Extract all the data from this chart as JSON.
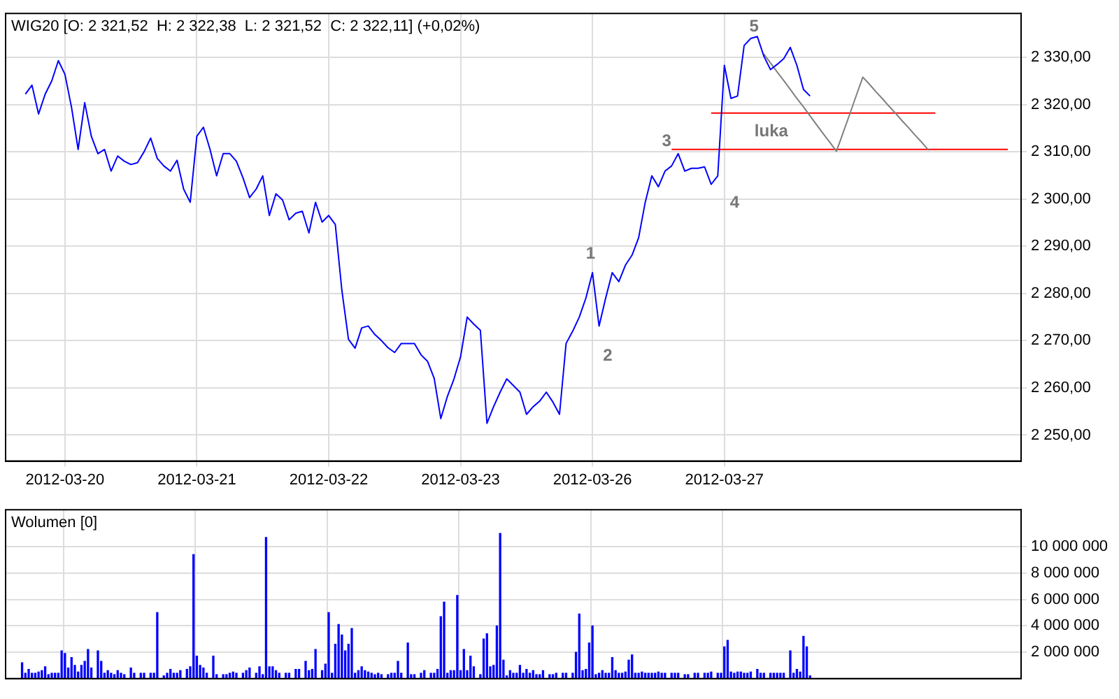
{
  "chart_data": [
    {
      "type": "line",
      "title": "WIG20 [O: 2 321,52  H: 2 322,38  L: 2 321,52  C: 2 322,11] (+0,02%)",
      "categories": [
        null,
        null,
        null,
        null,
        null,
        null,
        null,
        null,
        null,
        "2012-03-20",
        null,
        null,
        null,
        null,
        null,
        null,
        null,
        null,
        null,
        null,
        null,
        null,
        null,
        null,
        null,
        null,
        null,
        null,
        null,
        "2012-03-21",
        null,
        null,
        null,
        null,
        null,
        null,
        null,
        null,
        null,
        null,
        null,
        null,
        null,
        null,
        null,
        null,
        null,
        null,
        null,
        "2012-03-22",
        null,
        null,
        null,
        null,
        null,
        null,
        null,
        null,
        null,
        null,
        null,
        null,
        null,
        null,
        null,
        null,
        null,
        null,
        null,
        "2012-03-23",
        null,
        null,
        null,
        null,
        null,
        null,
        null,
        null,
        null,
        null,
        null,
        null,
        null,
        null,
        null,
        null,
        null,
        null,
        null,
        "2012-03-26",
        null,
        null,
        null,
        null,
        null,
        null,
        null,
        null,
        null,
        null,
        null,
        null,
        null,
        null,
        null,
        null,
        null,
        null,
        null,
        "2012-03-27",
        null,
        null,
        null,
        null,
        null,
        null,
        null,
        null,
        null,
        null,
        null,
        null,
        null,
        null,
        null,
        null,
        null,
        null,
        null,
        null,
        null,
        null,
        null,
        null,
        null,
        null,
        null,
        null,
        null,
        null,
        null,
        null,
        null,
        null,
        null,
        null,
        null,
        null,
        null,
        null,
        null,
        null,
        null,
        null,
        null
      ],
      "ylim": [
        2244.5,
        2339.3
      ],
      "yticks": [
        {
          "value": 2250,
          "label": "2 250,00"
        },
        {
          "value": 2260,
          "label": "2 260,00"
        },
        {
          "value": 2270,
          "label": "2 270,00"
        },
        {
          "value": 2280,
          "label": "2 280,00"
        },
        {
          "value": 2290,
          "label": "2 290,00"
        },
        {
          "value": 2300,
          "label": "2 300,00"
        },
        {
          "value": 2310,
          "label": "2 310,00"
        },
        {
          "value": 2320,
          "label": "2 320,00"
        },
        {
          "value": 2330,
          "label": "2 330,00"
        }
      ],
      "grid": true,
      "legend": false,
      "marker": "none",
      "line_style": "solid",
      "series": [
        {
          "color": "#0000ff",
          "values": [
            null,
            null,
            null,
            2322.2,
            2324.1,
            2318.0,
            2322.2,
            2325.0,
            2329.3,
            2326.4,
            2319.4,
            2310.5,
            2320.4,
            2313.3,
            2309.6,
            2310.5,
            2305.9,
            2309.1,
            2308.0,
            2307.3,
            2307.7,
            2310.0,
            2312.9,
            2308.6,
            2307.0,
            2305.9,
            2308.2,
            2302.1,
            2299.3,
            2313.3,
            2315.2,
            2310.5,
            2304.9,
            2309.6,
            2309.6,
            2308.0,
            2304.5,
            2300.3,
            2302.1,
            2304.9,
            2296.5,
            2301.1,
            2299.8,
            2295.6,
            2297.0,
            2297.4,
            2292.8,
            2299.3,
            2295.1,
            2296.5,
            2294.6,
            2280.6,
            2270.3,
            2268.4,
            2272.7,
            2273.1,
            2271.3,
            2270.0,
            2268.5,
            2267.5,
            2269.4,
            2269.4,
            2269.4,
            2267.0,
            2265.6,
            2262.0,
            2253.5,
            2258.2,
            2261.9,
            2266.6,
            2275.0,
            2273.5,
            2272.2,
            2252.5,
            2256.0,
            2259.1,
            2261.9,
            2260.5,
            2259.1,
            2254.4,
            2256.0,
            2257.2,
            2259.1,
            2257.0,
            2254.4,
            2269.4,
            2272.0,
            2275.0,
            2279.0,
            2284.4,
            2273.1,
            2279.0,
            2284.4,
            2282.5,
            2286.0,
            2288.1,
            2291.8,
            2299.3,
            2304.9,
            2302.6,
            2305.9,
            2307.0,
            2309.6,
            2305.9,
            2306.5,
            2306.5,
            2306.8,
            2303.1,
            2304.9,
            2328.3,
            2321.3,
            2321.8,
            2332.5,
            2334.0,
            2334.4,
            2330.2,
            2327.4,
            2328.5,
            2329.7,
            2332.1,
            2328.3,
            2323.2,
            2321.8,
            null,
            null,
            null,
            null,
            null,
            null,
            null,
            null,
            null,
            null,
            null,
            null,
            null,
            null,
            null,
            null,
            null,
            null,
            null,
            null,
            null,
            null,
            null,
            null,
            null,
            null,
            null,
            null,
            null,
            null,
            null,
            null
          ]
        },
        {
          "color": "#808080",
          "values": [
            null,
            null,
            null,
            null,
            null,
            null,
            null,
            null,
            null,
            null,
            null,
            null,
            null,
            null,
            null,
            null,
            null,
            null,
            null,
            null,
            null,
            null,
            null,
            null,
            null,
            null,
            null,
            null,
            null,
            null,
            null,
            null,
            null,
            null,
            null,
            null,
            null,
            null,
            null,
            null,
            null,
            null,
            null,
            null,
            null,
            null,
            null,
            null,
            null,
            null,
            null,
            null,
            null,
            null,
            null,
            null,
            null,
            null,
            null,
            null,
            null,
            null,
            null,
            null,
            null,
            null,
            null,
            null,
            null,
            null,
            null,
            null,
            null,
            null,
            null,
            null,
            null,
            null,
            null,
            null,
            null,
            null,
            null,
            null,
            null,
            null,
            null,
            null,
            null,
            null,
            null,
            null,
            null,
            null,
            null,
            null,
            null,
            null,
            null,
            null,
            null,
            null,
            null,
            null,
            null,
            null,
            null,
            null,
            null,
            null,
            null,
            null,
            null,
            null,
            null,
            2330.7,
            2328.8,
            2326.9,
            2325.1,
            2323.2,
            2321.3,
            2319.5,
            2317.6,
            2315.7,
            2313.8,
            2312.0,
            2310.1,
            2314.0,
            2317.9,
            2321.9,
            2325.8,
            2324.3,
            2322.7,
            2321.2,
            2319.6,
            2318.1,
            2316.5,
            2315.0,
            2313.4,
            2311.9,
            2310.3,
            null,
            null,
            null,
            null,
            null,
            null,
            null,
            null,
            null,
            null,
            null,
            null,
            null,
            null
          ]
        },
        {
          "color": "#ff0000",
          "values": [
            null,
            null,
            null,
            null,
            null,
            null,
            null,
            null,
            null,
            null,
            null,
            null,
            null,
            null,
            null,
            null,
            null,
            null,
            null,
            null,
            null,
            null,
            null,
            null,
            null,
            null,
            null,
            null,
            null,
            null,
            null,
            null,
            null,
            null,
            null,
            null,
            null,
            null,
            null,
            null,
            null,
            null,
            null,
            null,
            null,
            null,
            null,
            null,
            null,
            null,
            null,
            null,
            null,
            null,
            null,
            null,
            null,
            null,
            null,
            null,
            null,
            null,
            null,
            null,
            null,
            null,
            null,
            null,
            null,
            null,
            null,
            null,
            null,
            null,
            null,
            null,
            null,
            null,
            null,
            null,
            null,
            null,
            null,
            null,
            null,
            null,
            null,
            null,
            null,
            null,
            null,
            null,
            null,
            null,
            null,
            null,
            null,
            null,
            null,
            null,
            null,
            null,
            null,
            null,
            null,
            null,
            null,
            2318.2,
            2318.2,
            2318.2,
            2318.2,
            2318.2,
            2318.2,
            2318.2,
            2318.2,
            2318.2,
            2318.2,
            2318.2,
            2318.2,
            2318.2,
            2318.2,
            2318.2,
            2318.2,
            2318.2,
            2318.2,
            2318.2,
            2318.2,
            2318.2,
            2318.2,
            2318.2,
            2318.2,
            2318.2,
            2318.2,
            2318.2,
            2318.2,
            2318.2,
            2318.2,
            2318.2,
            2318.2,
            2318.2,
            2318.2,
            2318.2,
            null,
            null,
            null,
            null,
            null,
            null,
            null,
            null,
            null,
            null,
            null,
            null,
            null
          ]
        },
        {
          "color": "#ff0000",
          "values": [
            null,
            null,
            null,
            null,
            null,
            null,
            null,
            null,
            null,
            null,
            null,
            null,
            null,
            null,
            null,
            null,
            null,
            null,
            null,
            null,
            null,
            null,
            null,
            null,
            null,
            null,
            null,
            null,
            null,
            null,
            null,
            null,
            null,
            null,
            null,
            null,
            null,
            null,
            null,
            null,
            null,
            null,
            null,
            null,
            null,
            null,
            null,
            null,
            null,
            null,
            null,
            null,
            null,
            null,
            null,
            null,
            null,
            null,
            null,
            null,
            null,
            null,
            null,
            null,
            null,
            null,
            null,
            null,
            null,
            null,
            null,
            null,
            null,
            null,
            null,
            null,
            null,
            null,
            null,
            null,
            null,
            null,
            null,
            null,
            null,
            null,
            null,
            null,
            null,
            null,
            null,
            null,
            null,
            null,
            null,
            null,
            null,
            null,
            null,
            null,
            null,
            2310.5,
            2310.5,
            2310.5,
            2310.5,
            2310.5,
            2310.5,
            2310.5,
            2310.5,
            2310.5,
            2310.5,
            2310.5,
            2310.5,
            2310.5,
            2310.5,
            2310.5,
            2310.5,
            2310.5,
            2310.5,
            2310.5,
            2310.5,
            2310.5,
            2310.5,
            2310.5,
            2310.5,
            2310.5,
            2310.5,
            2310.5,
            2310.5,
            2310.5,
            2310.5,
            2310.5,
            2310.5,
            2310.5,
            2310.5,
            2310.5,
            2310.5,
            2310.5,
            2310.5,
            2310.5,
            2310.5,
            2310.5,
            2310.5,
            2310.5,
            2310.5,
            2310.5,
            2310.5,
            2310.5,
            2310.5,
            2310.5,
            2310.5,
            2310.5,
            2310.5,
            null,
            null
          ]
        }
      ],
      "annotations": [
        "1",
        "2",
        "3",
        "4",
        "5",
        "luka"
      ]
    },
    {
      "type": "bar",
      "title": "Wolumen [0]",
      "color": "#0000ff",
      "categories": [
        null,
        null,
        null,
        null,
        null,
        null,
        null,
        null,
        null,
        null,
        null,
        null,
        null,
        null,
        null,
        null,
        null,
        null,
        "2012-03-20",
        null,
        null,
        null,
        null,
        null,
        null,
        null,
        null,
        null,
        null,
        null,
        null,
        null,
        null,
        null,
        null,
        null,
        null,
        null,
        null,
        null,
        null,
        null,
        null,
        null,
        null,
        null,
        null,
        null,
        null,
        null,
        null,
        null,
        null,
        null,
        null,
        null,
        null,
        null,
        "2012-03-21",
        null,
        null,
        null,
        null,
        null,
        null,
        null,
        null,
        null,
        null,
        null,
        null,
        null,
        null,
        null,
        null,
        null,
        null,
        null,
        null,
        null,
        null,
        null,
        null,
        null,
        null,
        null,
        null,
        null,
        null,
        null,
        null,
        null,
        null,
        null,
        null,
        null,
        null,
        null,
        "2012-03-22",
        null,
        null,
        null,
        null,
        null,
        null,
        null,
        null,
        null,
        null,
        null,
        null,
        null,
        null,
        null,
        null,
        null,
        null,
        null,
        null,
        null,
        null,
        null,
        null,
        null,
        null,
        null,
        null,
        null,
        null,
        null,
        null,
        null,
        null,
        null,
        null,
        null,
        null,
        null,
        "2012-03-23",
        null,
        null,
        null,
        null,
        null,
        null,
        null,
        null,
        null,
        null,
        null,
        null,
        null,
        null,
        null,
        null,
        null,
        null,
        null,
        null,
        null,
        null,
        null,
        null,
        null,
        null,
        null,
        null,
        null,
        null,
        null,
        null,
        null,
        null,
        null,
        null,
        null,
        null,
        null,
        "2012-03-26",
        null,
        null,
        null,
        null,
        null,
        null,
        null,
        null,
        null,
        null,
        null,
        null,
        null,
        null,
        null,
        null,
        null,
        null,
        null,
        null,
        null,
        null,
        null,
        null,
        null,
        null,
        null,
        null,
        null,
        null,
        null,
        null,
        null,
        null,
        null,
        null,
        null,
        null,
        null,
        "2012-03-27",
        null,
        null,
        null,
        null,
        null,
        null,
        null,
        null,
        null,
        null,
        null,
        null,
        null,
        null,
        null,
        null,
        null,
        null,
        null,
        null,
        null,
        null,
        null,
        null,
        null,
        null,
        null,
        null,
        null,
        null,
        null,
        null,
        null,
        null,
        null,
        null,
        null,
        null,
        null,
        null,
        null,
        null,
        null,
        null,
        null,
        null,
        null,
        null,
        null,
        null,
        null,
        null,
        null,
        null,
        null,
        null,
        null,
        null,
        null,
        null,
        null,
        null,
        null,
        null,
        null,
        null,
        null,
        null,
        null,
        null,
        null,
        null,
        null,
        null,
        null,
        null,
        null,
        null,
        null,
        null,
        null,
        null,
        null,
        null,
        null,
        null,
        null,
        null,
        null,
        null
      ],
      "ylim": [
        0,
        12800000
      ],
      "yticks": [
        {
          "value": 2000000,
          "label": "2 000 000"
        },
        {
          "value": 4000000,
          "label": "4 000 000"
        },
        {
          "value": 6000000,
          "label": "6 000 000"
        },
        {
          "value": 8000000,
          "label": "8 000 000"
        },
        {
          "value": 10000000,
          "label": "10 000 000"
        }
      ],
      "grid": true,
      "legend": false,
      "tick_labels": "y",
      "values": [
        null,
        null,
        null,
        null,
        null,
        1200000,
        400000,
        700000,
        400000,
        400000,
        500000,
        600000,
        900000,
        300000,
        400000,
        400000,
        400000,
        2100000,
        1900000,
        800000,
        1600000,
        1000000,
        500000,
        1000000,
        1300000,
        2200000,
        800000,
        null,
        2100000,
        1300000,
        400000,
        600000,
        400000,
        300000,
        600000,
        400000,
        300000,
        null,
        800000,
        400000,
        null,
        400000,
        400000,
        null,
        400000,
        400000,
        5000000,
        null,
        200000,
        400000,
        700000,
        400000,
        400000,
        600000,
        null,
        700000,
        900000,
        9400000,
        1700000,
        1000000,
        800000,
        400000,
        null,
        1700000,
        300000,
        null,
        300000,
        300000,
        400000,
        500000,
        400000,
        null,
        400000,
        600000,
        800000,
        null,
        400000,
        900000,
        300000,
        10700000,
        900000,
        900000,
        600000,
        400000,
        null,
        400000,
        400000,
        null,
        700000,
        700000,
        null,
        1300000,
        600000,
        700000,
        2200000,
        null,
        600000,
        1100000,
        5000000,
        400000,
        2600000,
        4100000,
        3300000,
        2100000,
        2600000,
        3800000,
        400000,
        600000,
        900000,
        600000,
        500000,
        400000,
        300000,
        400000,
        300000,
        null,
        300000,
        400000,
        400000,
        1300000,
        400000,
        null,
        2700000,
        300000,
        300000,
        null,
        400000,
        600000,
        null,
        400000,
        400000,
        700000,
        4700000,
        5800000,
        400000,
        600000,
        600000,
        6300000,
        600000,
        2200000,
        600000,
        1700000,
        900000,
        null,
        300000,
        3000000,
        3400000,
        900000,
        1000000,
        4000000,
        11000000,
        1400000,
        200000,
        600000,
        400000,
        400000,
        1000000,
        400000,
        700000,
        400000,
        600000,
        300000,
        300000,
        600000,
        null,
        300000,
        300000,
        400000,
        null,
        400000,
        400000,
        null,
        400000,
        2000000,
        4900000,
        600000,
        700000,
        2700000,
        4000000,
        300000,
        400000,
        600000,
        400000,
        400000,
        1600000,
        600000,
        400000,
        400000,
        500000,
        1400000,
        1800000,
        400000,
        400000,
        500000,
        400000,
        400000,
        400000,
        400000,
        500000,
        400000,
        400000,
        null,
        400000,
        400000,
        400000,
        null,
        300000,
        300000,
        null,
        400000,
        400000,
        null,
        400000,
        400000,
        500000,
        null,
        400000,
        400000,
        2400000,
        2900000,
        500000,
        400000,
        500000,
        500000,
        400000,
        400000,
        500000,
        null,
        700000,
        400000,
        400000,
        null,
        400000,
        400000,
        400000,
        400000,
        400000,
        null,
        2100000,
        400000,
        700000,
        500000,
        3200000,
        2400000,
        200000,
        null,
        null,
        null,
        null,
        null,
        null,
        null,
        null,
        null,
        null,
        null,
        null,
        null,
        null,
        null,
        null,
        null,
        null,
        null,
        null,
        null,
        null,
        null,
        null,
        null,
        null,
        null,
        null,
        null,
        null,
        null,
        null,
        null,
        null,
        null,
        null,
        null,
        null,
        null,
        null,
        null,
        null,
        null,
        null,
        null,
        null,
        null,
        null,
        null,
        null,
        null,
        null,
        null,
        null,
        null,
        null,
        null,
        null,
        null,
        null,
        null,
        null,
        null,
        null
      ]
    }
  ]
}
